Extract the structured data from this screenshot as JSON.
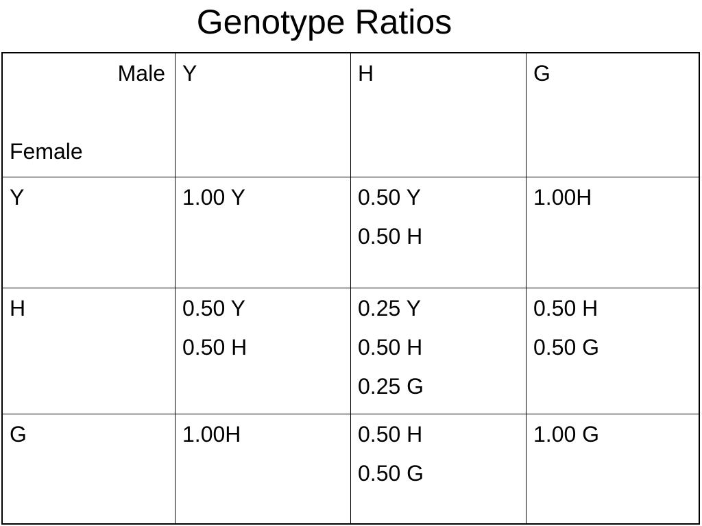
{
  "title": "Genotype Ratios",
  "table": {
    "corner": {
      "column_label": "Male",
      "row_label": "Female"
    },
    "columns": [
      "Y",
      "H",
      "G"
    ],
    "rows": [
      {
        "label": "Y",
        "cells": [
          [
            "1.00 Y"
          ],
          [
            "0.50 Y",
            "0.50 H"
          ],
          [
            "1.00H"
          ]
        ]
      },
      {
        "label": "H",
        "cells": [
          [
            "0.50 Y",
            "0.50 H"
          ],
          [
            "0.25 Y",
            "0.50 H",
            "0.25 G"
          ],
          [
            "0.50 H",
            "0.50 G"
          ]
        ]
      },
      {
        "label": "G",
        "cells": [
          [
            "1.00H"
          ],
          [
            "0.50 H",
            "0.50 G"
          ],
          [
            "1.00 G"
          ]
        ]
      }
    ]
  }
}
